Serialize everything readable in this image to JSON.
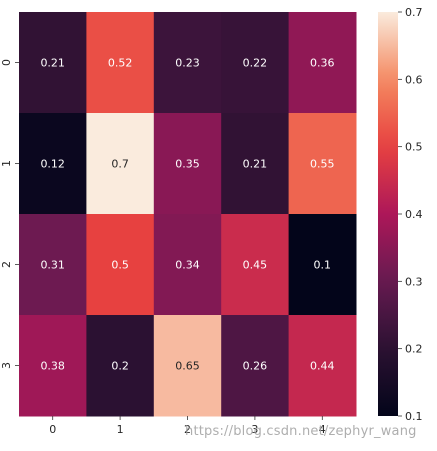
{
  "chart_data": {
    "type": "heatmap",
    "x_labels": [
      "0",
      "1",
      "2",
      "3",
      "4"
    ],
    "y_labels": [
      "0",
      "1",
      "2",
      "3"
    ],
    "values": [
      [
        0.21,
        0.52,
        0.23,
        0.22,
        0.36
      ],
      [
        0.12,
        0.7,
        0.35,
        0.21,
        0.55
      ],
      [
        0.31,
        0.5,
        0.34,
        0.45,
        0.1
      ],
      [
        0.38,
        0.2,
        0.65,
        0.26,
        0.44
      ]
    ],
    "value_labels": [
      [
        "0.21",
        "0.52",
        "0.23",
        "0.22",
        "0.36"
      ],
      [
        "0.12",
        "0.7",
        "0.35",
        "0.21",
        "0.55"
      ],
      [
        "0.31",
        "0.5",
        "0.34",
        "0.45",
        "0.1"
      ],
      [
        "0.38",
        "0.2",
        "0.65",
        "0.26",
        "0.44"
      ]
    ],
    "colorbar": {
      "vmin": 0.1,
      "vmax": 0.7,
      "ticks": [
        0.1,
        0.2,
        0.3,
        0.4,
        0.5,
        0.6,
        0.7
      ],
      "tick_labels": [
        "0.1",
        "0.2",
        "0.3",
        "0.4",
        "0.5",
        "0.6",
        "0.7"
      ],
      "colormap": "rocket"
    },
    "title": "",
    "xlabel": "",
    "ylabel": ""
  },
  "watermark": "https://blog.csdn.net/zephyr_wang"
}
